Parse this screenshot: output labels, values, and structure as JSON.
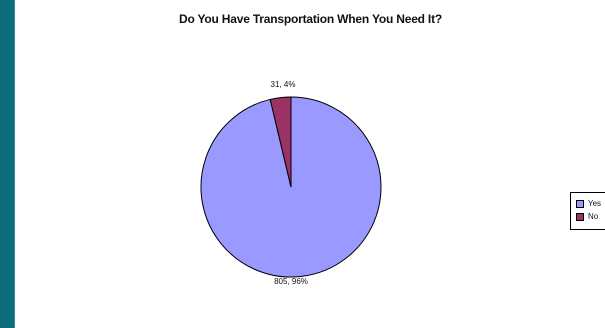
{
  "chart_data": {
    "type": "pie",
    "title": "Do You Have Transportation When You Need It?",
    "categories": [
      "Yes",
      "No"
    ],
    "values": [
      805,
      31
    ],
    "percentages": [
      96,
      4
    ],
    "data_labels": [
      "805, 96%",
      "31, 4%"
    ],
    "colors": [
      "#9999ff",
      "#993366"
    ],
    "legend": {
      "position": "right",
      "entries": [
        "Yes",
        "No"
      ]
    }
  }
}
